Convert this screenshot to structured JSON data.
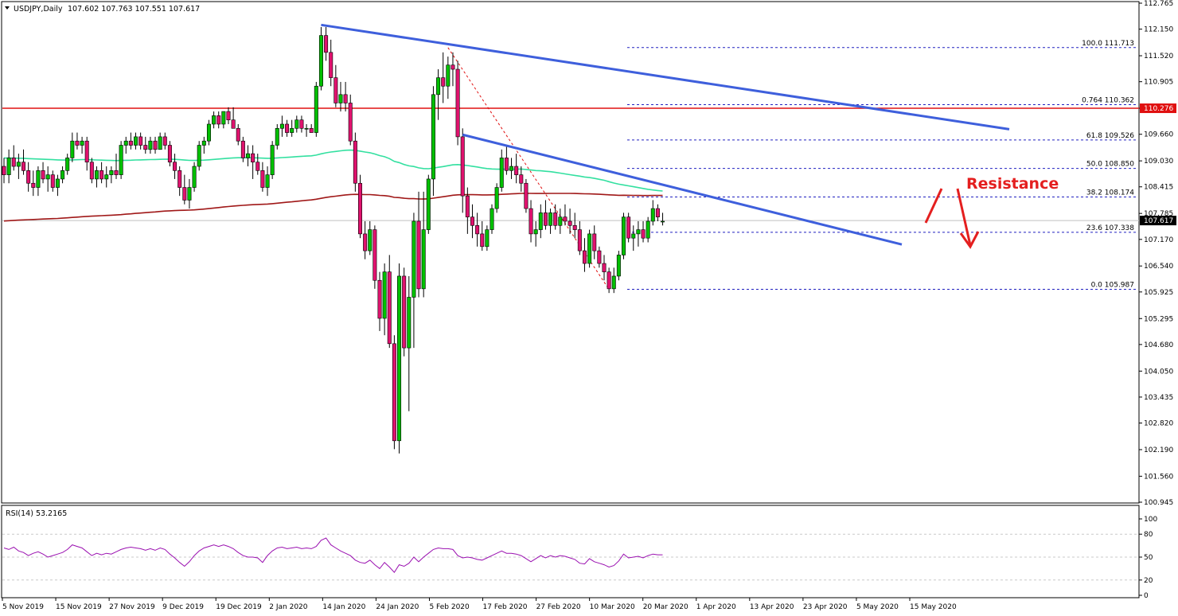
{
  "header": {
    "symbol": "USDJPY,Daily",
    "ohlc": "107.602 107.763 107.551 107.617"
  },
  "rsi_label": "RSI(14) 53.2165",
  "annotation": "Resistance",
  "colors": {
    "bull": "#00c000",
    "bear": "#e0126e",
    "wick": "#000000",
    "sma_fast": "#33e0a0",
    "sma_slow": "#a01818",
    "trendline": "#3e5fdc",
    "resistance_line": "#e01010",
    "fib": "#2020c0",
    "rsi": "#9a10b0"
  },
  "chart_data": {
    "type": "candlestick",
    "price_axis": {
      "ticks": [
        "112.765",
        "112.150",
        "111.520",
        "110.905",
        "110.276",
        "109.660",
        "109.030",
        "108.415",
        "107.785",
        "107.617",
        "107.170",
        "106.540",
        "105.925",
        "105.295",
        "104.680",
        "104.050",
        "103.435",
        "102.820",
        "102.190",
        "101.560",
        "100.945"
      ],
      "range": [
        100.945,
        112.765
      ]
    },
    "date_axis": {
      "labels": [
        "5 Nov 2019",
        "15 Nov 2019",
        "27 Nov 2019",
        "9 Dec 2019",
        "19 Dec 2019",
        "2 Jan 2020",
        "14 Jan 2020",
        "24 Jan 2020",
        "5 Feb 2020",
        "17 Feb 2020",
        "27 Feb 2020",
        "10 Mar 2020",
        "20 Mar 2020",
        "1 Apr 2020",
        "13 Apr 2020",
        "23 Apr 2020",
        "5 May 2020",
        "15 May 2020"
      ]
    },
    "current_price": "107.617",
    "resistance_level": "110.276",
    "fibonacci": [
      {
        "label": "100.0 111.713",
        "value": 111.713
      },
      {
        "label": "0.764 110.362",
        "value": 110.362
      },
      {
        "label": "61.8 109.526",
        "value": 109.526
      },
      {
        "label": "50.0 108.850",
        "value": 108.85
      },
      {
        "label": "38.2 108.174",
        "value": 108.174
      },
      {
        "label": "23.6 107.338",
        "value": 107.338
      },
      {
        "label": "0.0 105.987",
        "value": 105.987
      }
    ],
    "candles": [
      [
        108.9,
        109.1,
        108.5,
        108.7
      ],
      [
        108.7,
        109.3,
        108.5,
        109.1
      ],
      [
        109.1,
        109.4,
        108.8,
        108.9
      ],
      [
        108.9,
        109.2,
        108.6,
        109.0
      ],
      [
        109.0,
        109.3,
        108.7,
        108.8
      ],
      [
        108.8,
        109.0,
        108.3,
        108.5
      ],
      [
        108.5,
        108.8,
        108.2,
        108.4
      ],
      [
        108.4,
        108.9,
        108.2,
        108.8
      ],
      [
        108.8,
        109.0,
        108.5,
        108.6
      ],
      [
        108.6,
        108.9,
        108.3,
        108.7
      ],
      [
        108.7,
        108.8,
        108.3,
        108.4
      ],
      [
        108.4,
        108.7,
        108.2,
        108.6
      ],
      [
        108.6,
        108.9,
        108.5,
        108.8
      ],
      [
        108.8,
        109.2,
        108.7,
        109.1
      ],
      [
        109.1,
        109.7,
        109.0,
        109.5
      ],
      [
        109.5,
        109.7,
        109.3,
        109.4
      ],
      [
        109.4,
        109.6,
        109.2,
        109.5
      ],
      [
        109.5,
        109.6,
        108.8,
        109.0
      ],
      [
        109.0,
        109.1,
        108.5,
        108.6
      ],
      [
        108.6,
        108.9,
        108.4,
        108.8
      ],
      [
        108.8,
        109.0,
        108.5,
        108.6
      ],
      [
        108.6,
        108.9,
        108.4,
        108.7
      ],
      [
        108.7,
        108.9,
        108.5,
        108.8
      ],
      [
        108.8,
        109.2,
        108.6,
        108.7
      ],
      [
        108.7,
        109.5,
        108.6,
        109.4
      ],
      [
        109.4,
        109.6,
        109.2,
        109.5
      ],
      [
        109.5,
        109.7,
        109.3,
        109.4
      ],
      [
        109.4,
        109.7,
        109.3,
        109.6
      ],
      [
        109.6,
        109.7,
        109.3,
        109.4
      ],
      [
        109.4,
        109.6,
        109.2,
        109.3
      ],
      [
        109.3,
        109.6,
        109.2,
        109.5
      ],
      [
        109.5,
        109.6,
        109.2,
        109.3
      ],
      [
        109.3,
        109.7,
        109.3,
        109.6
      ],
      [
        109.6,
        109.7,
        109.3,
        109.4
      ],
      [
        109.4,
        109.5,
        108.9,
        109.0
      ],
      [
        109.0,
        109.2,
        108.6,
        108.8
      ],
      [
        108.8,
        108.9,
        108.2,
        108.4
      ],
      [
        108.4,
        108.7,
        108.0,
        108.1
      ],
      [
        108.1,
        108.6,
        107.9,
        108.4
      ],
      [
        108.4,
        109.0,
        108.3,
        108.9
      ],
      [
        108.9,
        109.5,
        108.8,
        109.4
      ],
      [
        109.4,
        109.6,
        109.2,
        109.5
      ],
      [
        109.5,
        110.0,
        109.4,
        109.9
      ],
      [
        109.9,
        110.2,
        109.8,
        110.1
      ],
      [
        110.1,
        110.2,
        109.8,
        109.9
      ],
      [
        109.9,
        110.2,
        109.8,
        110.2
      ],
      [
        110.2,
        110.3,
        109.9,
        110.0
      ],
      [
        110.0,
        110.3,
        109.8,
        109.8
      ],
      [
        109.8,
        109.9,
        109.4,
        109.5
      ],
      [
        109.5,
        109.6,
        109.0,
        109.1
      ],
      [
        109.1,
        109.4,
        108.9,
        109.2
      ],
      [
        109.2,
        109.4,
        108.6,
        109.0
      ],
      [
        109.0,
        109.2,
        108.7,
        108.8
      ],
      [
        108.8,
        109.0,
        108.3,
        108.4
      ],
      [
        108.4,
        108.9,
        108.2,
        108.7
      ],
      [
        108.7,
        109.5,
        108.6,
        109.4
      ],
      [
        109.4,
        109.9,
        109.3,
        109.8
      ],
      [
        109.8,
        110.1,
        109.6,
        109.9
      ],
      [
        109.9,
        110.0,
        109.6,
        109.7
      ],
      [
        109.7,
        110.0,
        109.6,
        109.8
      ],
      [
        109.8,
        110.1,
        109.7,
        110.0
      ],
      [
        110.0,
        110.1,
        109.7,
        109.8
      ],
      [
        109.8,
        109.9,
        109.6,
        109.8
      ],
      [
        109.8,
        109.9,
        109.7,
        109.7
      ],
      [
        109.7,
        110.9,
        109.6,
        110.8
      ],
      [
        110.8,
        112.2,
        110.7,
        112.0
      ],
      [
        112.0,
        112.2,
        111.4,
        111.6
      ],
      [
        111.6,
        111.9,
        110.8,
        111.0
      ],
      [
        111.0,
        111.3,
        110.3,
        110.4
      ],
      [
        110.4,
        110.9,
        110.2,
        110.6
      ],
      [
        110.6,
        110.9,
        110.2,
        110.4
      ],
      [
        110.4,
        110.6,
        109.4,
        109.5
      ],
      [
        109.5,
        109.7,
        108.3,
        108.5
      ],
      [
        108.5,
        108.7,
        107.2,
        107.3
      ],
      [
        107.3,
        107.6,
        106.7,
        106.9
      ],
      [
        106.9,
        107.6,
        106.8,
        107.4
      ],
      [
        107.4,
        107.5,
        106.0,
        106.2
      ],
      [
        106.2,
        106.4,
        105.0,
        105.3
      ],
      [
        105.3,
        106.6,
        104.9,
        106.4
      ],
      [
        106.4,
        106.8,
        104.6,
        104.7
      ],
      [
        104.7,
        104.9,
        102.2,
        102.4
      ],
      [
        102.4,
        106.6,
        102.1,
        106.3
      ],
      [
        106.3,
        106.5,
        104.4,
        104.6
      ],
      [
        104.6,
        106.3,
        103.1,
        105.8
      ],
      [
        105.8,
        107.8,
        104.6,
        107.6
      ],
      [
        107.6,
        108.3,
        105.8,
        106.0
      ],
      [
        106.0,
        108.3,
        105.8,
        107.4
      ],
      [
        107.4,
        108.7,
        107.3,
        108.6
      ],
      [
        108.6,
        110.8,
        108.2,
        110.6
      ],
      [
        110.6,
        111.2,
        110.0,
        111.0
      ],
      [
        111.0,
        111.6,
        110.4,
        110.8
      ],
      [
        110.8,
        111.5,
        110.5,
        111.3
      ],
      [
        111.3,
        111.6,
        110.8,
        111.2
      ],
      [
        111.2,
        111.4,
        109.4,
        109.6
      ],
      [
        109.6,
        109.8,
        107.8,
        108.2
      ],
      [
        108.2,
        108.4,
        107.3,
        107.7
      ],
      [
        107.7,
        108.0,
        107.2,
        107.5
      ],
      [
        107.5,
        107.8,
        107.0,
        107.3
      ],
      [
        107.3,
        107.6,
        106.9,
        107.0
      ],
      [
        107.0,
        107.5,
        106.9,
        107.4
      ],
      [
        107.4,
        108.0,
        107.3,
        107.9
      ],
      [
        107.9,
        108.5,
        107.8,
        108.4
      ],
      [
        108.4,
        109.3,
        108.3,
        109.1
      ],
      [
        109.1,
        109.4,
        108.7,
        108.8
      ],
      [
        108.8,
        109.1,
        108.6,
        108.9
      ],
      [
        108.9,
        109.2,
        108.5,
        108.7
      ],
      [
        108.7,
        108.9,
        108.3,
        108.5
      ],
      [
        108.5,
        108.6,
        107.8,
        107.9
      ],
      [
        107.9,
        108.1,
        107.1,
        107.3
      ],
      [
        107.3,
        107.6,
        107.0,
        107.4
      ],
      [
        107.4,
        108.0,
        107.2,
        107.8
      ],
      [
        107.8,
        108.1,
        107.4,
        107.5
      ],
      [
        107.5,
        107.9,
        107.3,
        107.8
      ],
      [
        107.8,
        108.0,
        107.4,
        107.5
      ],
      [
        107.5,
        107.9,
        107.3,
        107.7
      ],
      [
        107.7,
        108.0,
        107.5,
        107.6
      ],
      [
        107.6,
        107.9,
        107.3,
        107.5
      ],
      [
        107.5,
        107.8,
        107.2,
        107.4
      ],
      [
        107.4,
        107.6,
        106.8,
        106.9
      ],
      [
        106.9,
        107.2,
        106.4,
        106.6
      ],
      [
        106.6,
        107.4,
        106.5,
        107.3
      ],
      [
        107.3,
        107.5,
        106.7,
        106.9
      ],
      [
        106.9,
        107.0,
        106.5,
        106.6
      ],
      [
        106.6,
        106.8,
        106.2,
        106.4
      ],
      [
        106.4,
        106.5,
        105.9,
        106.0
      ],
      [
        106.0,
        106.5,
        105.9,
        106.3
      ],
      [
        106.3,
        106.9,
        106.2,
        106.8
      ],
      [
        106.8,
        107.8,
        106.7,
        107.7
      ],
      [
        107.7,
        107.8,
        107.1,
        107.2
      ],
      [
        107.2,
        107.5,
        106.9,
        107.3
      ],
      [
        107.3,
        107.6,
        107.0,
        107.4
      ],
      [
        107.4,
        107.6,
        107.1,
        107.2
      ],
      [
        107.2,
        107.7,
        107.1,
        107.6
      ],
      [
        107.6,
        108.1,
        107.5,
        107.9
      ],
      [
        107.9,
        108.0,
        107.6,
        107.7
      ],
      [
        107.6,
        107.8,
        107.5,
        107.6
      ]
    ],
    "rsi": {
      "name": "RSI(14)",
      "levels": [
        80,
        50,
        20
      ],
      "axis_ticks": [
        "100",
        "80",
        "50",
        "20",
        "0"
      ],
      "values": [
        62,
        60,
        63,
        58,
        56,
        52,
        55,
        57,
        54,
        50,
        52,
        54,
        56,
        60,
        66,
        64,
        62,
        57,
        52,
        55,
        53,
        55,
        54,
        57,
        60,
        62,
        63,
        62,
        61,
        59,
        61,
        59,
        62,
        60,
        54,
        49,
        43,
        38,
        44,
        52,
        58,
        62,
        64,
        66,
        64,
        66,
        64,
        61,
        56,
        52,
        50,
        50,
        49,
        43,
        52,
        58,
        62,
        63,
        61,
        62,
        63,
        61,
        62,
        61,
        64,
        72,
        75,
        66,
        62,
        58,
        55,
        52,
        46,
        43,
        42,
        46,
        40,
        35,
        43,
        37,
        30,
        40,
        38,
        42,
        50,
        44,
        50,
        55,
        60,
        62,
        61,
        61,
        60,
        52,
        49,
        50,
        49,
        47,
        46,
        49,
        52,
        55,
        58,
        55,
        55,
        54,
        52,
        48,
        44,
        48,
        52,
        49,
        52,
        50,
        52,
        51,
        49,
        47,
        42,
        41,
        48,
        44,
        42,
        40,
        37,
        39,
        45,
        54,
        49,
        50,
        51,
        49,
        52,
        54,
        53,
        53
      ]
    }
  }
}
